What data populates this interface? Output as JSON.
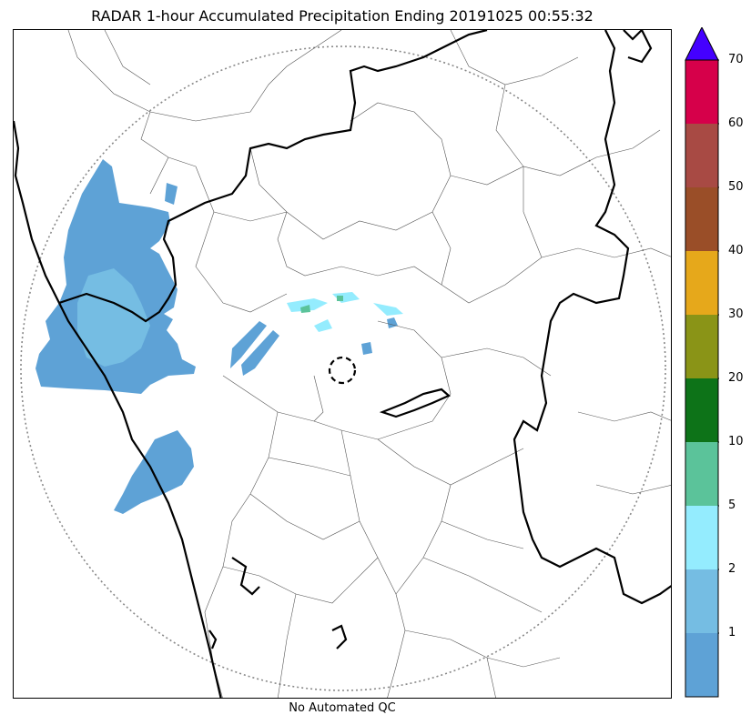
{
  "title": "RADAR 1-hour Accumulated Precipitation Ending 20191025 00:55:32",
  "footer_note": "No Automated QC",
  "colorbar": {
    "extend": "max",
    "extend_color": "#4400ff",
    "levels": [
      {
        "label": "",
        "color": "#5ea2d6"
      },
      {
        "label": "1",
        "color": "#75bde3"
      },
      {
        "label": "2",
        "color": "#94ecfe"
      },
      {
        "label": "5",
        "color": "#5bc39a"
      },
      {
        "label": "10",
        "color": "#0d7318"
      },
      {
        "label": "20",
        "color": "#8a9417"
      },
      {
        "label": "30",
        "color": "#e6a81b"
      },
      {
        "label": "40",
        "color": "#9a4e28"
      },
      {
        "label": "50",
        "color": "#a84a44"
      },
      {
        "label": "60",
        "color": "#d6004a"
      },
      {
        "label": "70",
        "color": ""
      }
    ]
  },
  "map": {
    "coastline_color": "#000000",
    "district_border_color": "#555555",
    "range_ring_color": "#888888",
    "radar_site_marker": "dashed-circle",
    "precip_colors": {
      "light": "#5ea2d6",
      "moderate": "#75bde3",
      "cyan": "#94ecfe",
      "green": "#5bc39a"
    }
  }
}
